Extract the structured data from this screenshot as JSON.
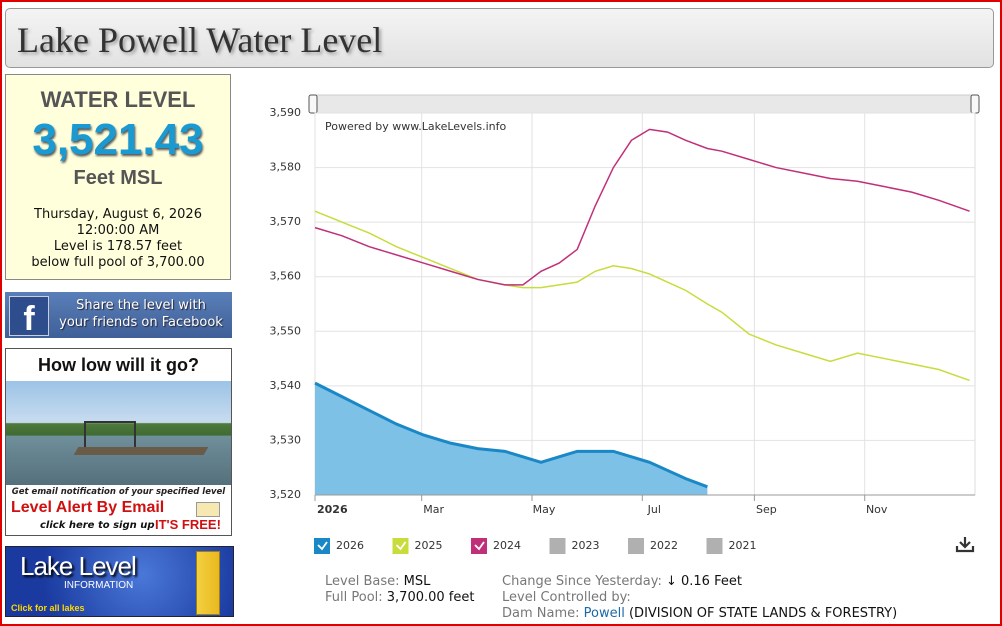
{
  "header": {
    "title": "Lake Powell Water Level"
  },
  "sidebar": {
    "level_box": {
      "heading": "WATER LEVEL",
      "level": "3,521.43",
      "unit": "Feet MSL",
      "date": "Thursday, August 6, 2026",
      "time": "12:00:00 AM",
      "below_line1": "Level is 178.57 feet",
      "below_line2": "below full pool of 3,700.00"
    },
    "facebook": {
      "icon": "f",
      "line1": "Share the level with",
      "line2": "your friends on Facebook"
    },
    "alert_ad": {
      "title": "How low will it go?",
      "note": "Get email notification of your specified level",
      "headline": "Level Alert By Email",
      "signup": "click here to sign up",
      "free": "IT'S FREE!"
    },
    "lakes_banner": {
      "title": "Lake Level",
      "subtitle": "INFORMATION",
      "link": "Click for all lakes"
    }
  },
  "chart_data": {
    "type": "line",
    "annotation": "Powered by www.LakeLevels.info",
    "x": [
      0,
      15,
      30,
      45,
      60,
      75,
      90,
      105,
      115,
      125,
      135,
      145,
      155,
      165,
      175,
      185,
      195,
      205,
      217,
      225,
      240,
      255,
      270,
      285,
      300,
      315,
      330,
      345,
      362
    ],
    "xlim": [
      0,
      365
    ],
    "xticks": [
      {
        "value": 0,
        "label": "2026"
      },
      {
        "value": 59,
        "label": "Mar"
      },
      {
        "value": 120,
        "label": "May"
      },
      {
        "value": 181,
        "label": "Jul"
      },
      {
        "value": 243,
        "label": "Sep"
      },
      {
        "value": 304,
        "label": "Nov"
      }
    ],
    "ylim": [
      3520,
      3590
    ],
    "yticks": [
      {
        "value": 3520,
        "label": "3,520"
      },
      {
        "value": 3530,
        "label": "3,530"
      },
      {
        "value": 3540,
        "label": "3,540"
      },
      {
        "value": 3550,
        "label": "3,550"
      },
      {
        "value": 3560,
        "label": "3,560"
      },
      {
        "value": 3570,
        "label": "3,570"
      },
      {
        "value": 3580,
        "label": "3,580"
      },
      {
        "value": 3590,
        "label": "3,590"
      }
    ],
    "grid": true,
    "series": [
      {
        "name": "2026",
        "color": "#1a88c6",
        "fill_color": "#7dc2e6",
        "values": [
          3540.5,
          3538,
          3535.5,
          3533,
          3531,
          3529.5,
          3528.5,
          3528,
          3527,
          3526,
          3527,
          3528,
          3528,
          3528,
          3527,
          3526,
          3524.5,
          3523,
          3521.5,
          null,
          null,
          null,
          null,
          null,
          null,
          null,
          null,
          null,
          null
        ]
      },
      {
        "name": "2025",
        "color": "#c8dc3c",
        "values": [
          3572,
          3570,
          3568,
          3565.5,
          3563.5,
          3561.5,
          3559.5,
          3558.5,
          3558,
          3558,
          3558.5,
          3559,
          3561,
          3562,
          3561.5,
          3560.5,
          3559,
          3557.5,
          3555,
          3553.5,
          3549.5,
          3547.5,
          3546,
          3544.5,
          3546,
          3545,
          3544,
          3543,
          3541
        ]
      },
      {
        "name": "2024",
        "color": "#c0307a",
        "values": [
          3569,
          3567.5,
          3565.5,
          3564,
          3562.5,
          3561,
          3559.5,
          3558.5,
          3558.5,
          3561,
          3562.5,
          3565,
          3573,
          3580,
          3585,
          3587,
          3586.5,
          3585,
          3583.5,
          3583,
          3581.5,
          3580,
          3579,
          3578,
          3577.5,
          3576.5,
          3575.5,
          3574,
          3572
        ]
      }
    ],
    "hidden_series": [
      {
        "name": "2023",
        "color": "#b0b0b0"
      },
      {
        "name": "2022",
        "color": "#b0b0b0"
      },
      {
        "name": "2021",
        "color": "#b0b0b0"
      }
    ]
  },
  "info": {
    "level_base_label": "Level Base:",
    "level_base": "MSL",
    "full_pool_label": "Full Pool:",
    "full_pool": "3,700.00 feet",
    "change_label": "Change Since Yesterday:",
    "change": "↓ 0.16 Feet",
    "controlled_label": "Level Controlled by:",
    "dam_label": "Dam Name:",
    "dam": "Powell",
    "agency": "(DIVISION OF STATE LANDS & FORESTRY)"
  }
}
